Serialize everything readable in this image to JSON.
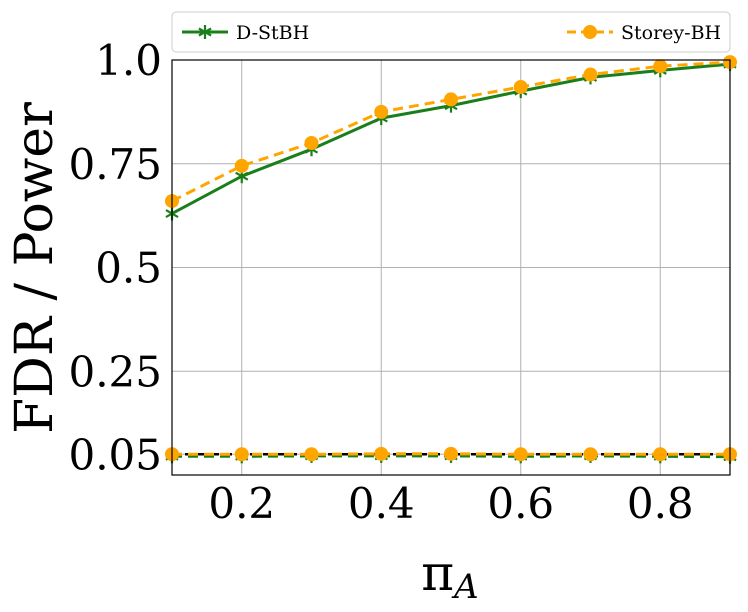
{
  "chart_data": {
    "type": "line",
    "xlabel": "π",
    "xlabel_sub": "A",
    "ylabel": "FDR / Power",
    "xlim": [
      0.1,
      0.9
    ],
    "ylim": [
      0.0,
      1.0
    ],
    "x_ticks": [
      0.2,
      0.4,
      0.6,
      0.8
    ],
    "x_tick_labels": [
      "0.2",
      "0.4",
      "0.6",
      "0.8"
    ],
    "y_ticks": [
      0.05,
      0.25,
      0.5,
      0.75,
      1.0
    ],
    "y_tick_labels": [
      "0.05",
      "0.25",
      "0.5",
      "0.75",
      "1.0"
    ],
    "grid": true,
    "legend_position": "top",
    "reference_line": {
      "y": 0.05,
      "color": "#000000",
      "style": "dashed"
    },
    "x": [
      0.1,
      0.2,
      0.3,
      0.4,
      0.5,
      0.6,
      0.7,
      0.8,
      0.9
    ],
    "series": [
      {
        "name": "D-StBH",
        "metric": "power",
        "color": "#1a7f1a",
        "linestyle": "solid",
        "marker": "asterisk",
        "values": [
          0.63,
          0.72,
          0.785,
          0.86,
          0.89,
          0.925,
          0.958,
          0.975,
          0.99
        ]
      },
      {
        "name": "Storey-BH",
        "metric": "power",
        "color": "#ffa500",
        "linestyle": "dashed",
        "marker": "circle",
        "values": [
          0.66,
          0.745,
          0.8,
          0.875,
          0.905,
          0.935,
          0.965,
          0.985,
          0.995
        ]
      },
      {
        "name": "D-StBH",
        "metric": "fdr",
        "color": "#1a7f1a",
        "linestyle": "dashed",
        "marker": "asterisk",
        "values": [
          0.045,
          0.045,
          0.046,
          0.046,
          0.046,
          0.045,
          0.046,
          0.045,
          0.044
        ]
      },
      {
        "name": "Storey-BH",
        "metric": "fdr",
        "color": "#ffa500",
        "linestyle": "dashed",
        "marker": "circle",
        "values": [
          0.05,
          0.05,
          0.05,
          0.051,
          0.051,
          0.05,
          0.05,
          0.05,
          0.05
        ]
      }
    ]
  }
}
